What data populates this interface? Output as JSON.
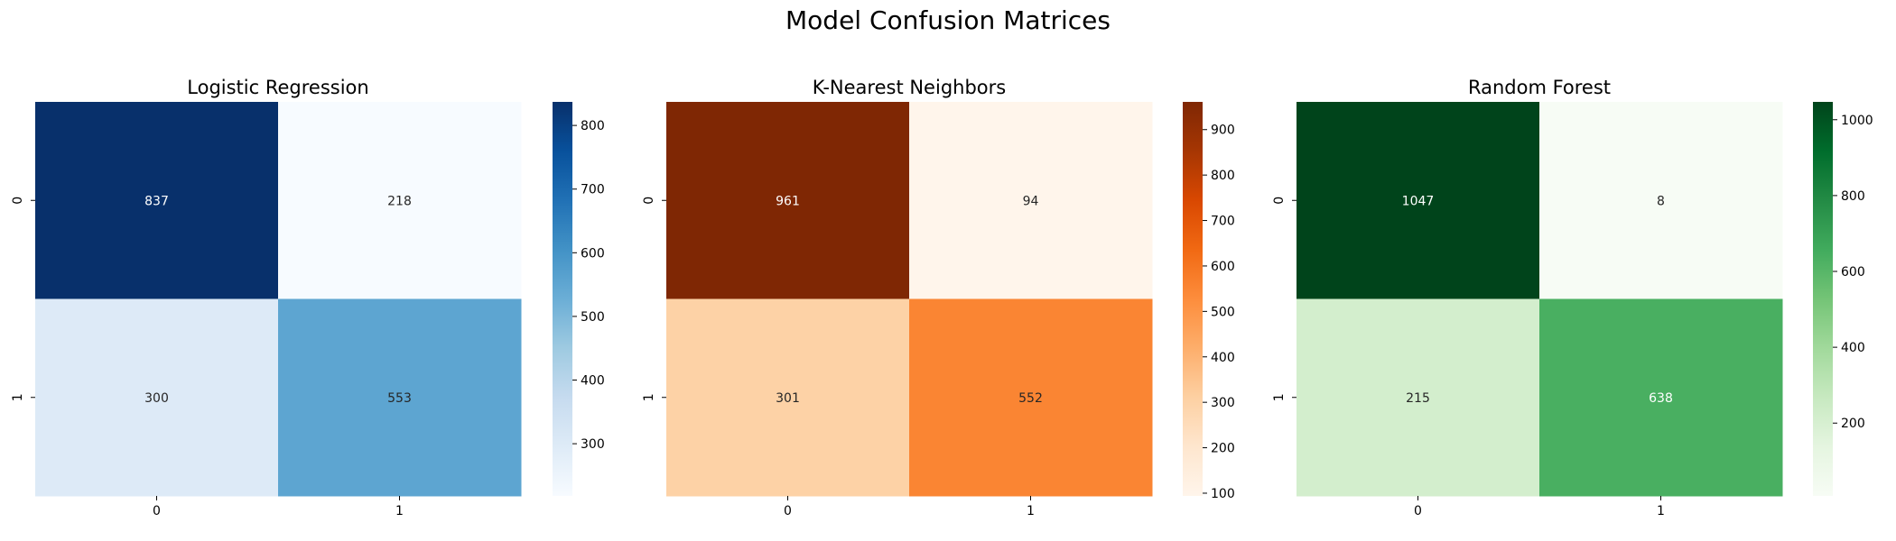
{
  "figure": {
    "suptitle": "Model Confusion Matrices"
  },
  "chart_data": [
    {
      "type": "heatmap",
      "title": "Logistic Regression",
      "x_ticklabels": [
        "0",
        "1"
      ],
      "y_ticklabels": [
        "0",
        "1"
      ],
      "matrix": [
        [
          837,
          218
        ],
        [
          300,
          553
        ]
      ],
      "colormap": "Blues",
      "colormap_stops": [
        "#f7fbff",
        "#deebf7",
        "#c6dbef",
        "#9ecae1",
        "#6baed6",
        "#4292c6",
        "#2171b5",
        "#08519c",
        "#08306b"
      ],
      "colorbar": {
        "min": 218,
        "max": 837,
        "ticks": [
          300,
          400,
          500,
          600,
          700,
          800
        ]
      }
    },
    {
      "type": "heatmap",
      "title": "K-Nearest Neighbors",
      "x_ticklabels": [
        "0",
        "1"
      ],
      "y_ticklabels": [
        "0",
        "1"
      ],
      "matrix": [
        [
          961,
          94
        ],
        [
          301,
          552
        ]
      ],
      "colormap": "Oranges",
      "colormap_stops": [
        "#fff5eb",
        "#fee6ce",
        "#fdd0a2",
        "#fdae6b",
        "#fd8d3c",
        "#f16913",
        "#d94801",
        "#a63603",
        "#7f2704"
      ],
      "colorbar": {
        "min": 94,
        "max": 961,
        "ticks": [
          100,
          200,
          300,
          400,
          500,
          600,
          700,
          800,
          900
        ]
      }
    },
    {
      "type": "heatmap",
      "title": "Random Forest",
      "x_ticklabels": [
        "0",
        "1"
      ],
      "y_ticklabels": [
        "0",
        "1"
      ],
      "matrix": [
        [
          1047,
          8
        ],
        [
          215,
          638
        ]
      ],
      "colormap": "Greens",
      "colormap_stops": [
        "#f7fcf5",
        "#e5f5e0",
        "#c7e9c0",
        "#a1d99b",
        "#74c476",
        "#41ab5d",
        "#238b45",
        "#006d2c",
        "#00441b"
      ],
      "colorbar": {
        "min": 8,
        "max": 1047,
        "ticks": [
          200,
          400,
          600,
          800,
          1000
        ]
      }
    }
  ]
}
